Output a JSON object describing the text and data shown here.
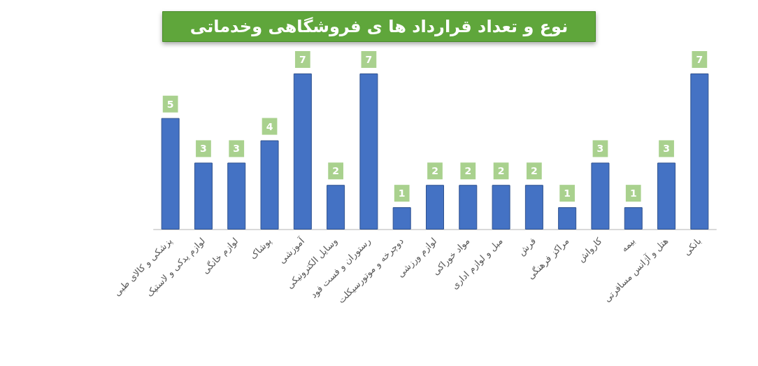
{
  "chart_data": {
    "type": "bar",
    "title": "نوع و تعداد قرارداد ها ی فروشگاهی وخدماتی",
    "categories": [
      "پزشکی و کالای طبی",
      "لوازم یدکی و لاستیک",
      "لوازم خانگی",
      "پوشاک",
      "آموزشی",
      "وسایل الکترونیکی",
      "رستوران و فست فود",
      "دوچرخه و موتورسیکلت",
      "لوازم ورزشی",
      "مواد خوراکی",
      "مبل و لوازم اداری",
      "فرش",
      "مراکز فرهنگی",
      "کارواش",
      "بیمه",
      "هتل و آژانس مسافرتی",
      "بانکی"
    ],
    "values": [
      5,
      3,
      3,
      4,
      7,
      2,
      7,
      1,
      2,
      2,
      2,
      2,
      1,
      3,
      1,
      3,
      7
    ],
    "color": "#4472c4",
    "data_labels": true
  }
}
